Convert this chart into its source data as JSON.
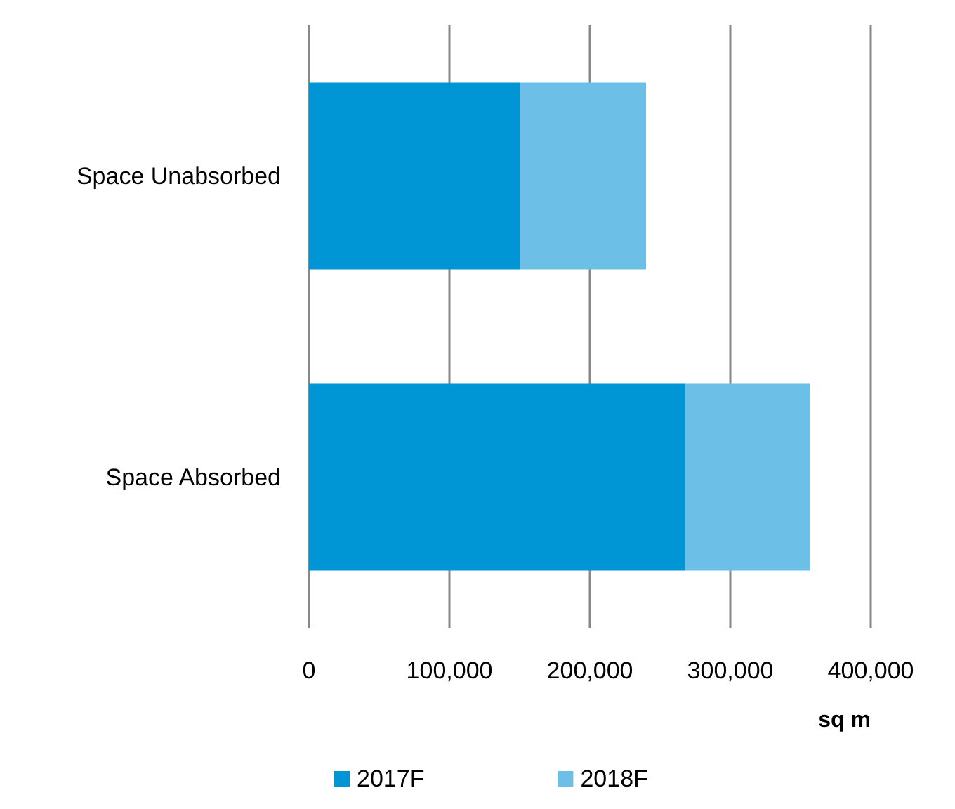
{
  "chart_data": {
    "type": "bar",
    "orientation": "horizontal",
    "stacked": true,
    "categories": [
      "Space Unabsorbed",
      "Space Absorbed"
    ],
    "series": [
      {
        "name": "2017F",
        "color": "#0096d6",
        "values": [
          150000,
          268000
        ]
      },
      {
        "name": "2018F",
        "color": "#6cc0e8",
        "values": [
          90000,
          89000
        ]
      }
    ],
    "xlim": [
      0,
      400000
    ],
    "xticks": [
      {
        "value": 0,
        "label": "0"
      },
      {
        "value": 100000,
        "label": "100,000"
      },
      {
        "value": 200000,
        "label": "200,000"
      },
      {
        "value": 300000,
        "label": "300,000"
      },
      {
        "value": 400000,
        "label": "400,000"
      }
    ],
    "xlabel": "sq m",
    "grid": "x",
    "legend": "bottom"
  }
}
